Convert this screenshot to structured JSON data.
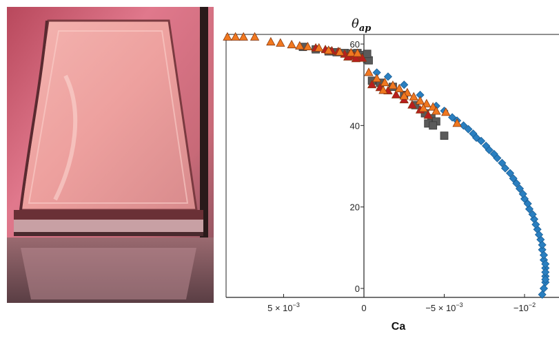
{
  "photo": {
    "colors": {
      "background_top": "#c8506a",
      "background_mid": "#e07a8a",
      "background_bottom": "#8a5a64",
      "film": "#f0a8a8",
      "film_edge": "#7a3a40",
      "frame_dark": "#2a1a1a"
    }
  },
  "chart_data": {
    "type": "scatter",
    "ylabel": "θ",
    "ylabel_sub": "ap",
    "xlabel": "Ca",
    "xlim": [
      0.0088,
      -0.0115
    ],
    "ylim": [
      -2,
      63
    ],
    "x_inverted": true,
    "grid": false,
    "y_ticks": [
      {
        "value": 0,
        "label": "0"
      },
      {
        "value": 20,
        "label": "20"
      },
      {
        "value": 40,
        "label": "40"
      },
      {
        "value": 60,
        "label": "60"
      }
    ],
    "x_ticks": [
      {
        "value": 0.005,
        "label": "5 × 10",
        "exp": "−3"
      },
      {
        "value": 0,
        "label": "0",
        "exp": ""
      },
      {
        "value": -0.005,
        "label": "−5 × 10",
        "exp": "−3"
      },
      {
        "value": -0.01,
        "label": "−10",
        "exp": "−2"
      }
    ],
    "series": [
      {
        "marker": "square",
        "color": "#5a5a5a",
        "points": [
          [
            0.0038,
            59.3
          ],
          [
            0.003,
            58.7
          ],
          [
            0.0022,
            58.2
          ],
          [
            0.0017,
            58.0
          ],
          [
            0.0012,
            57.8
          ],
          [
            0.0008,
            57.7
          ],
          [
            0.0004,
            57.8
          ],
          [
            0.0001,
            57.3
          ],
          [
            -0.0001,
            56.8
          ],
          [
            -0.0002,
            56.3
          ],
          [
            -0.0003,
            56.0
          ],
          [
            -0.0002,
            57.6
          ],
          [
            -0.0005,
            51.0
          ],
          [
            -0.001,
            50.5
          ],
          [
            -0.0018,
            49.5
          ],
          [
            -0.0025,
            47.5
          ],
          [
            -0.0032,
            45.0
          ],
          [
            -0.0038,
            43.0
          ],
          [
            -0.0042,
            41.8
          ],
          [
            -0.0045,
            41.0
          ],
          [
            -0.004,
            40.5
          ],
          [
            -0.0043,
            40.0
          ],
          [
            -0.005,
            37.5
          ]
        ]
      },
      {
        "marker": "diamond",
        "color": "#2a7fc0",
        "points": [
          [
            -0.0008,
            53.0
          ],
          [
            -0.0015,
            52.0
          ],
          [
            -0.0025,
            50.0
          ],
          [
            -0.0035,
            47.5
          ],
          [
            -0.0045,
            44.8
          ],
          [
            -0.0055,
            42.0
          ],
          [
            -0.0062,
            40.0
          ],
          [
            -0.0068,
            38.0
          ],
          [
            -0.0073,
            36.2
          ],
          [
            -0.0078,
            34.0
          ],
          [
            -0.0083,
            32.0
          ],
          [
            -0.0088,
            29.5
          ],
          [
            -0.0093,
            27.0
          ],
          [
            -0.0097,
            24.5
          ],
          [
            -0.01,
            22.0
          ],
          [
            -0.0103,
            19.5
          ],
          [
            -0.0106,
            17.0
          ],
          [
            -0.0108,
            14.5
          ],
          [
            -0.011,
            12.0
          ],
          [
            -0.0111,
            9.5
          ],
          [
            -0.0112,
            7.0
          ],
          [
            -0.0113,
            5.0
          ],
          [
            -0.0113,
            3.0
          ],
          [
            -0.0113,
            1.5
          ],
          [
            -0.0112,
            0.0
          ],
          [
            -0.0111,
            -1.5
          ],
          [
            -0.005,
            43.6
          ],
          [
            -0.0058,
            41.2
          ],
          [
            -0.0065,
            39.1
          ],
          [
            -0.007,
            37.0
          ],
          [
            -0.0076,
            35.0
          ],
          [
            -0.0081,
            33.0
          ],
          [
            -0.0086,
            30.8
          ],
          [
            -0.0091,
            28.3
          ],
          [
            -0.0095,
            25.8
          ],
          [
            -0.0099,
            23.2
          ],
          [
            -0.0102,
            20.8
          ],
          [
            -0.0105,
            18.2
          ],
          [
            -0.0107,
            15.7
          ],
          [
            -0.0109,
            13.2
          ],
          [
            -0.0111,
            10.7
          ],
          [
            -0.0112,
            8.2
          ],
          [
            -0.0113,
            6.0
          ],
          [
            -0.0113,
            4.0
          ],
          [
            -0.0113,
            2.2
          ]
        ]
      },
      {
        "marker": "triangle",
        "color": "#b81e1e",
        "points": [
          [
            0.003,
            59.0
          ],
          [
            0.0024,
            58.6
          ],
          [
            0.002,
            58.3
          ],
          [
            0.0016,
            58.1
          ],
          [
            0.0012,
            57.5
          ],
          [
            0.0009,
            57.3
          ],
          [
            0.0006,
            57.0
          ],
          [
            0.0003,
            56.9
          ],
          [
            0.0001,
            56.5
          ],
          [
            0.001,
            56.8
          ],
          [
            0.0005,
            56.4
          ],
          [
            -0.0005,
            50.0
          ],
          [
            -0.001,
            49.3
          ],
          [
            -0.0015,
            48.5
          ],
          [
            -0.002,
            47.5
          ],
          [
            -0.0025,
            46.3
          ],
          [
            -0.003,
            45.0
          ],
          [
            -0.0035,
            43.8
          ],
          [
            -0.004,
            42.5
          ]
        ]
      },
      {
        "marker": "triangle",
        "color": "#f07820",
        "points": [
          [
            0.0085,
            61.7
          ],
          [
            0.008,
            61.7
          ],
          [
            0.0075,
            61.7
          ],
          [
            0.0068,
            61.7
          ],
          [
            0.0058,
            60.5
          ],
          [
            0.0052,
            60.2
          ],
          [
            0.0045,
            59.8
          ],
          [
            0.004,
            59.5
          ],
          [
            0.0035,
            59.3
          ],
          [
            0.0028,
            59.0
          ],
          [
            0.0022,
            58.4
          ],
          [
            0.0015,
            58.0
          ],
          [
            0.0008,
            57.8
          ],
          [
            0.0004,
            57.7
          ],
          [
            -0.0003,
            53.0
          ],
          [
            -0.0008,
            51.5
          ],
          [
            -0.0013,
            50.5
          ],
          [
            -0.0018,
            49.8
          ],
          [
            -0.0022,
            49.0
          ],
          [
            -0.0027,
            48.0
          ],
          [
            -0.0031,
            47.0
          ],
          [
            -0.0035,
            46.0
          ],
          [
            -0.0039,
            45.3
          ],
          [
            -0.0043,
            44.5
          ],
          [
            -0.0045,
            43.5
          ],
          [
            -0.0051,
            43.2
          ],
          [
            -0.0058,
            40.5
          ],
          [
            -0.0012,
            48.6
          ],
          [
            -0.0025,
            47.2
          ],
          [
            -0.0037,
            44.2
          ]
        ]
      }
    ]
  }
}
